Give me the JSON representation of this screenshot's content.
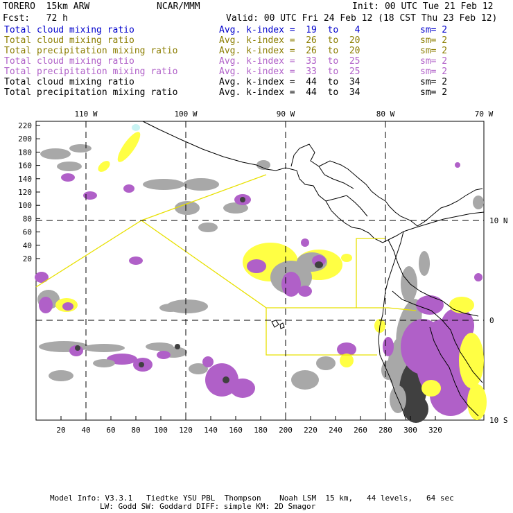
{
  "header": {
    "model": "TORERO  15km ARW",
    "org": "NCAR/MMM",
    "init": "Init: 00 UTC Tue 21 Feb 12",
    "fcst": "Fcst:   72 h",
    "valid": "Valid: 00 UTC Fri 24 Feb 12 (18 CST Thu 23 Feb 12)"
  },
  "legend": [
    {
      "field": "Total cloud mixing ratio",
      "index": "Avg. k-index =  19  to   4",
      "sm": "sm= 2",
      "color": "#0000cc"
    },
    {
      "field": "Total cloud mixing ratio",
      "index": "Avg. k-index =  26  to  20",
      "sm": "sm= 2",
      "color": "#8b7d00"
    },
    {
      "field": "Total precipitation mixing ratio",
      "index": "Avg. k-index =  26  to  20",
      "sm": "sm= 2",
      "color": "#8b7d00"
    },
    {
      "field": "Total cloud mixing ratio",
      "index": "Avg. k-index =  33  to  25",
      "sm": "sm= 2",
      "color": "#b060c8"
    },
    {
      "field": "Total precipitation mixing ratio",
      "index": "Avg. k-index =  33  to  25",
      "sm": "sm= 2",
      "color": "#b060c8"
    },
    {
      "field": "Total cloud mixing ratio",
      "index": "Avg. k-index =  44  to  34",
      "sm": "sm= 2",
      "color": "#000000"
    },
    {
      "field": "Total precipitation mixing ratio",
      "index": "Avg. k-index =  44  to  34",
      "sm": "sm= 2",
      "color": "#000000"
    }
  ],
  "map": {
    "top_lon_labels": [
      "110 W",
      "100 W",
      "90 W",
      "80 W",
      "70 W"
    ],
    "right_lat_labels": [
      "10 N",
      "0",
      "10 S"
    ],
    "left_ticks": [
      "220",
      "200",
      "180",
      "160",
      "140",
      "120",
      "100",
      "80",
      "60",
      "40",
      "20"
    ],
    "bottom_ticks": [
      "20",
      "40",
      "60",
      "80",
      "100",
      "120",
      "140",
      "160",
      "180",
      "200",
      "220",
      "240",
      "260",
      "280",
      "300",
      "320"
    ],
    "colors": {
      "gray": "#a8a8a8",
      "dark": "#404040",
      "purple": "#b060c8",
      "yellow": "#ffff44",
      "cyan": "#c8f4f4",
      "outline": "#e8e000"
    }
  },
  "footer": {
    "line1": "Model Info: V3.3.1   Tiedtke YSU PBL  Thompson    Noah LSM  15 km,   44 levels,   64 sec",
    "line2": "LW: Godd SW: Goddard DIFF: simple KM: 2D Smagor"
  }
}
